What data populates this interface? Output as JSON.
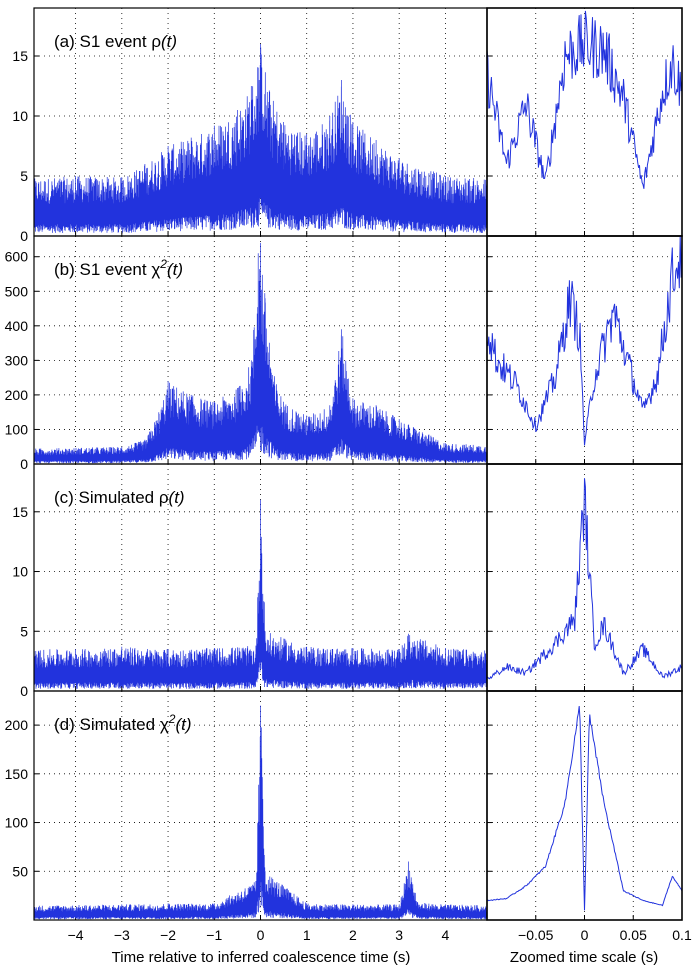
{
  "colors": {
    "line": "#2233dd",
    "axes": "#000000",
    "grid": "#000000"
  },
  "chart_data": [
    {
      "type": "line",
      "title": {
        "prefix": "(a) S1 event ",
        "symbol": "ρ",
        "sup": "",
        "func": "(t)"
      },
      "full": {
        "xlim": [
          -4.9,
          4.9
        ],
        "xticks": [
          -4,
          -3,
          -2,
          -1,
          0,
          1,
          2,
          3,
          4
        ],
        "xticklabels": [
          "−4",
          "−3",
          "−2",
          "−1",
          "0",
          "1",
          "2",
          "3",
          "4"
        ]
      },
      "zoom": {
        "xlim": [
          -0.1,
          0.1
        ],
        "xticks": [
          -0.05,
          0,
          0.05,
          0.1
        ],
        "xticklabels": [
          "−0.05",
          "0",
          "0.05",
          "0.1"
        ]
      },
      "ylim": [
        0,
        19
      ],
      "yticks": [
        0,
        5,
        10,
        15
      ],
      "yticklabels": [
        "0",
        "5",
        "10",
        "15"
      ],
      "series_full": {
        "x": [
          -4.9,
          -4,
          -3,
          -2.5,
          -2,
          -1.5,
          -1,
          -0.5,
          -0.2,
          0,
          0.2,
          0.5,
          1,
          1.5,
          1.75,
          2,
          2.5,
          3,
          4,
          4.9
        ],
        "y": [
          4.8,
          5.0,
          4.9,
          6.0,
          7.5,
          8.2,
          9.2,
          10.5,
          12.5,
          16.0,
          12.0,
          9.5,
          8.5,
          10.0,
          13.0,
          9.5,
          8.0,
          6.5,
          5.0,
          4.8
        ]
      },
      "series_zoom": {
        "x": [
          -0.1,
          -0.08,
          -0.06,
          -0.04,
          -0.02,
          0,
          0.02,
          0.04,
          0.06,
          0.08,
          0.09,
          0.1
        ],
        "y": [
          13.5,
          6.0,
          11.0,
          4.5,
          15.0,
          16.0,
          15.5,
          11.5,
          4.0,
          12.0,
          14.5,
          12.0
        ]
      }
    },
    {
      "type": "line",
      "title": {
        "prefix": "(b) S1 event ",
        "symbol": "χ",
        "sup": "2",
        "func": "(t)"
      },
      "full": {
        "xlim": [
          -4.9,
          4.9
        ],
        "xticks": [
          -4,
          -3,
          -2,
          -1,
          0,
          1,
          2,
          3,
          4
        ],
        "xticklabels": [
          "−4",
          "−3",
          "−2",
          "−1",
          "0",
          "1",
          "2",
          "3",
          "4"
        ]
      },
      "zoom": {
        "xlim": [
          -0.1,
          0.1
        ],
        "xticks": [
          -0.05,
          0,
          0.05,
          0.1
        ],
        "xticklabels": [
          "−0.05",
          "0",
          "0.05",
          "0.1"
        ]
      },
      "ylim": [
        0,
        660
      ],
      "yticks": [
        0,
        100,
        200,
        300,
        400,
        500,
        600
      ],
      "yticklabels": [
        "0",
        "100",
        "200",
        "300",
        "400",
        "500",
        "600"
      ],
      "series_full": {
        "x": [
          -4.9,
          -3,
          -2.5,
          -2.2,
          -2,
          -1.5,
          -1,
          -0.5,
          -0.2,
          -0.05,
          0,
          0.1,
          0.3,
          0.5,
          1,
          1.5,
          1.75,
          2,
          2.5,
          3,
          4,
          4.9
        ],
        "y": [
          45,
          50,
          70,
          150,
          240,
          200,
          180,
          220,
          300,
          610,
          640,
          480,
          250,
          180,
          140,
          170,
          390,
          190,
          170,
          130,
          60,
          55
        ]
      },
      "series_zoom": {
        "x": [
          -0.1,
          -0.09,
          -0.07,
          -0.05,
          -0.03,
          -0.015,
          -0.005,
          0,
          0.01,
          0.03,
          0.045,
          0.06,
          0.075,
          0.09,
          0.1
        ],
        "y": [
          400,
          300,
          230,
          110,
          250,
          480,
          380,
          60,
          250,
          440,
          290,
          150,
          260,
          540,
          620
        ]
      }
    },
    {
      "type": "line",
      "title": {
        "prefix": "(c) Simulated ",
        "symbol": "ρ",
        "sup": "",
        "func": "(t)"
      },
      "full": {
        "xlim": [
          -4.9,
          4.9
        ],
        "xticks": [
          -4,
          -3,
          -2,
          -1,
          0,
          1,
          2,
          3,
          4
        ],
        "xticklabels": [
          "−4",
          "−3",
          "−2",
          "−1",
          "0",
          "1",
          "2",
          "3",
          "4"
        ]
      },
      "zoom": {
        "xlim": [
          -0.1,
          0.1
        ],
        "xticks": [
          -0.05,
          0,
          0.05,
          0.1
        ],
        "xticklabels": [
          "−0.05",
          "0",
          "0.05",
          "0.1"
        ]
      },
      "ylim": [
        0,
        19
      ],
      "yticks": [
        0,
        5,
        10,
        15
      ],
      "yticklabels": [
        "0",
        "5",
        "10",
        "15"
      ],
      "series_full": {
        "x": [
          -4.9,
          -4,
          -3,
          -2,
          -1,
          -0.1,
          0,
          0.1,
          1,
          2,
          3,
          3.2,
          4,
          4.9
        ],
        "y": [
          3.5,
          3.5,
          3.7,
          3.5,
          3.6,
          3.8,
          16.0,
          5.0,
          3.7,
          3.6,
          3.5,
          4.8,
          3.6,
          3.4
        ]
      },
      "series_zoom": {
        "x": [
          -0.1,
          -0.08,
          -0.06,
          -0.03,
          -0.01,
          0,
          0.01,
          0.02,
          0.04,
          0.06,
          0.08,
          0.1
        ],
        "y": [
          1.0,
          2.0,
          1.5,
          4.0,
          6.0,
          16.0,
          4.0,
          5.5,
          1.5,
          3.5,
          1.2,
          2.0
        ]
      }
    },
    {
      "type": "line",
      "title": {
        "prefix": "(d) Simulated ",
        "symbol": "χ",
        "sup": "2",
        "func": "(t)"
      },
      "full": {
        "xlim": [
          -4.9,
          4.9
        ],
        "xticks": [
          -4,
          -3,
          -2,
          -1,
          0,
          1,
          2,
          3,
          4
        ],
        "xticklabels": [
          "−4",
          "−3",
          "−2",
          "−1",
          "0",
          "1",
          "2",
          "3",
          "4"
        ]
      },
      "zoom": {
        "xlim": [
          -0.1,
          0.1
        ],
        "xticks": [
          -0.05,
          0,
          0.05,
          0.1
        ],
        "xticklabels": [
          "−0.05",
          "0",
          "0.05",
          "0.1"
        ]
      },
      "ylim": [
        0,
        235
      ],
      "yticks": [
        50,
        100,
        150,
        200
      ],
      "yticklabels": [
        "50",
        "100",
        "150",
        "200"
      ],
      "series_full": {
        "x": [
          -4.9,
          -3,
          -2,
          -1,
          -0.1,
          0,
          0.1,
          1,
          2,
          3,
          3.2,
          3.4,
          4,
          4.9
        ],
        "y": [
          15,
          16,
          17,
          17,
          40,
          220,
          50,
          17,
          16,
          16,
          60,
          18,
          16,
          15
        ]
      },
      "series_zoom": {
        "x": [
          -0.1,
          -0.08,
          -0.06,
          -0.04,
          -0.02,
          -0.005,
          0,
          0.005,
          0.02,
          0.04,
          0.06,
          0.08,
          0.09,
          0.1
        ],
        "y": [
          20,
          22,
          35,
          55,
          120,
          220,
          10,
          210,
          120,
          30,
          20,
          15,
          45,
          30
        ]
      }
    }
  ],
  "xlabel_full": "Time relative to inferred coalescence time (s)",
  "xlabel_zoom": "Zoomed time scale (s)"
}
